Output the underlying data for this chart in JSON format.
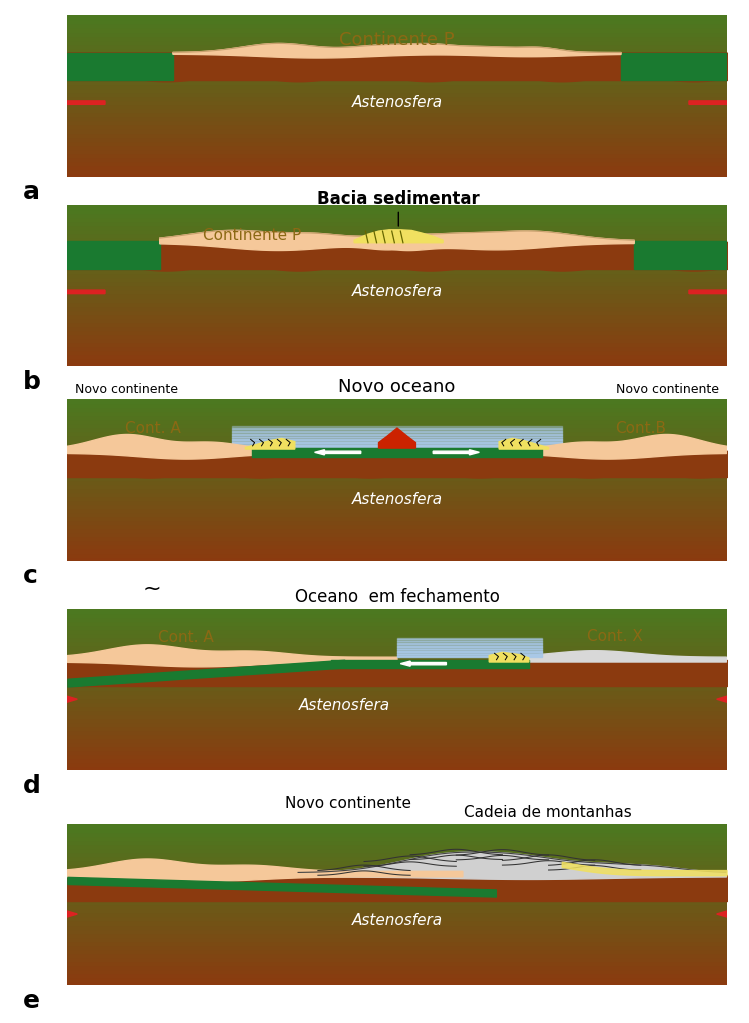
{
  "bg_color": "#ffffff",
  "border_color": "#000000",
  "colors": {
    "asthenosphere_top": "#8B3A0F",
    "asthenosphere_bottom": "#4a7a20",
    "continent": "#F5C89A",
    "continent_outline": "#c8a06e",
    "ocean_crust": "#1a7a30",
    "ocean_water_top": "#c8dff0",
    "ocean_water_bot": "#7aaad0",
    "sediment": "#f0e060",
    "volcanic": "#cc2200",
    "arrow_red": "#dd2222",
    "arrow_white": "#ffffff",
    "mountain_fill": "#d0d0d0"
  },
  "panel_labels": [
    "a",
    "b",
    "c",
    "d",
    "e"
  ],
  "label_a": "Continente P",
  "label_b_title": "Bacia sedimentar",
  "label_b_cont": "Continente P",
  "label_c_title": "Novo oceano",
  "label_c_left": "Novo continente",
  "label_c_right": "Novo continente",
  "label_c_contA": "Cont. A",
  "label_c_contB": "Cont.B",
  "label_d_title": "Oceano  em fechamento",
  "label_d_contA": "Cont. A",
  "label_d_contX": "Cont. X",
  "label_e_title": "Novo continente",
  "label_e_subtitle": "Cadeia de montanhas",
  "asthenosphere_label": "Astenosfera"
}
